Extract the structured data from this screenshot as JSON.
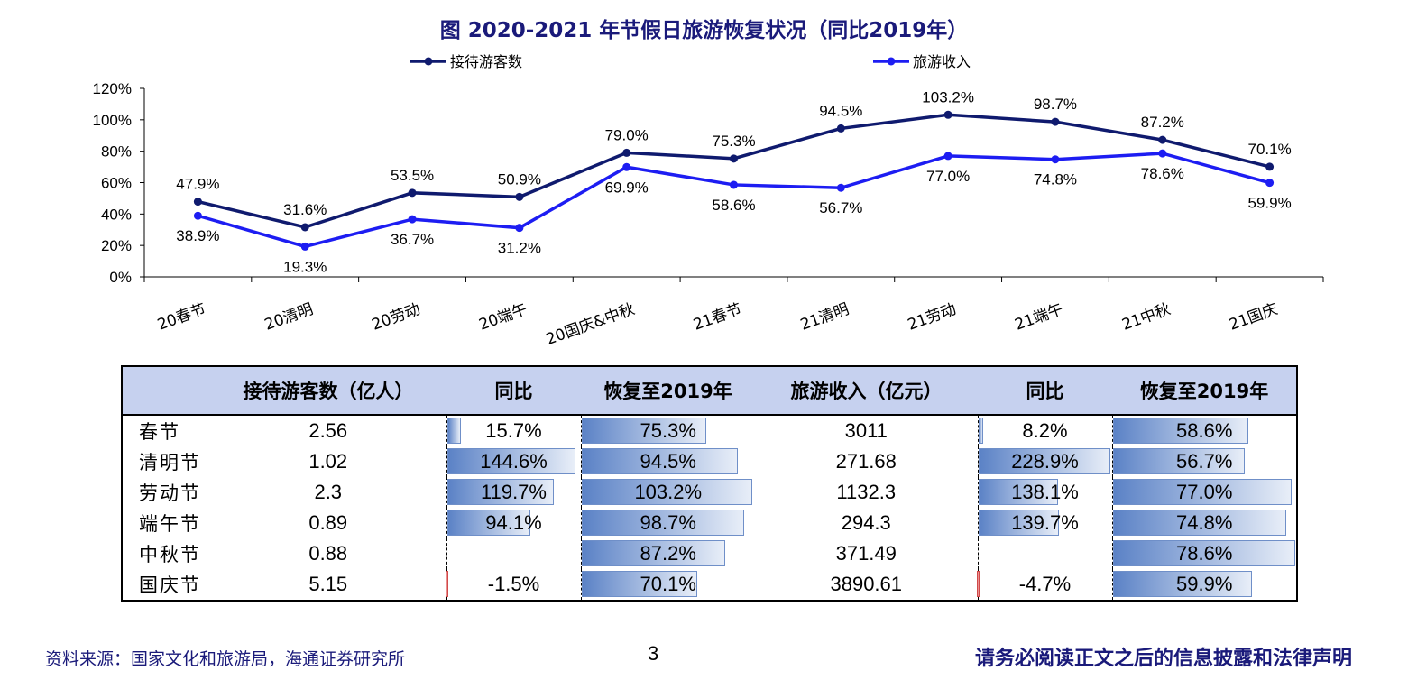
{
  "chart_data": {
    "type": "line",
    "title": "图 2020-2021 年节假日旅游恢复状况（同比2019年）",
    "categories": [
      "20春节",
      "20清明",
      "20劳动",
      "20端午",
      "20国庆&中秋",
      "21春节",
      "21清明",
      "21劳动",
      "21端午",
      "21中秋",
      "21国庆"
    ],
    "series": [
      {
        "name": "接待游客数",
        "values": [
          47.9,
          31.6,
          53.5,
          50.9,
          79.0,
          75.3,
          94.5,
          103.2,
          98.7,
          87.2,
          70.1
        ],
        "labels": [
          "47.9%",
          "31.6%",
          "53.5%",
          "50.9%",
          "79.0%",
          "75.3%",
          "94.5%",
          "103.2%",
          "98.7%",
          "87.2%",
          "70.1%"
        ],
        "color": "#0f1a6e"
      },
      {
        "name": "旅游收入",
        "values": [
          38.9,
          19.3,
          36.7,
          31.2,
          69.9,
          58.6,
          56.7,
          77.0,
          74.8,
          78.6,
          59.9
        ],
        "labels": [
          "38.9%",
          "19.3%",
          "36.7%",
          "31.2%",
          "69.9%",
          "58.6%",
          "56.7%",
          "77.0%",
          "74.8%",
          "78.6%",
          "59.9%"
        ],
        "color": "#1d1df2"
      }
    ],
    "ylim": [
      0,
      120
    ],
    "yticks": [
      "0%",
      "20%",
      "40%",
      "60%",
      "80%",
      "100%",
      "120%"
    ],
    "legend": "top"
  },
  "table": {
    "headers": [
      "",
      "接待游客数（亿人）",
      "同比",
      "恢复至2019年",
      "旅游收入（亿元）",
      "同比",
      "恢复至2019年"
    ],
    "rows": [
      {
        "name": "春节",
        "visitors": "2.56",
        "v_yoy": "15.7%",
        "v_yoy_num": 15.7,
        "v_rec": "75.3%",
        "v_rec_num": 75.3,
        "revenue": "3011",
        "r_yoy": "8.2%",
        "r_yoy_num": 8.2,
        "r_rec": "58.6%",
        "r_rec_num": 58.6
      },
      {
        "name": "清明节",
        "visitors": "1.02",
        "v_yoy": "144.6%",
        "v_yoy_num": 144.6,
        "v_rec": "94.5%",
        "v_rec_num": 94.5,
        "revenue": "271.68",
        "r_yoy": "228.9%",
        "r_yoy_num": 228.9,
        "r_rec": "56.7%",
        "r_rec_num": 56.7
      },
      {
        "name": "劳动节",
        "visitors": "2.3",
        "v_yoy": "119.7%",
        "v_yoy_num": 119.7,
        "v_rec": "103.2%",
        "v_rec_num": 103.2,
        "revenue": "1132.3",
        "r_yoy": "138.1%",
        "r_yoy_num": 138.1,
        "r_rec": "77.0%",
        "r_rec_num": 77.0
      },
      {
        "name": "端午节",
        "visitors": "0.89",
        "v_yoy": "94.1%",
        "v_yoy_num": 94.1,
        "v_rec": "98.7%",
        "v_rec_num": 98.7,
        "revenue": "294.3",
        "r_yoy": "139.7%",
        "r_yoy_num": 139.7,
        "r_rec": "74.8%",
        "r_rec_num": 74.8
      },
      {
        "name": "中秋节",
        "visitors": "0.88",
        "v_yoy": "",
        "v_yoy_num": null,
        "v_rec": "87.2%",
        "v_rec_num": 87.2,
        "revenue": "371.49",
        "r_yoy": "",
        "r_yoy_num": null,
        "r_rec": "78.6%",
        "r_rec_num": 78.6
      },
      {
        "name": "国庆节",
        "visitors": "5.15",
        "v_yoy": "-1.5%",
        "v_yoy_num": -1.5,
        "v_rec": "70.1%",
        "v_rec_num": 70.1,
        "revenue": "3890.61",
        "r_yoy": "-4.7%",
        "r_yoy_num": -4.7,
        "r_rec": "59.9%",
        "r_rec_num": 59.9
      }
    ]
  },
  "footer": {
    "source": "资料来源：国家文化和旅游局，海通证券研究所",
    "page": "3",
    "disclaimer": "请务必阅读正文之后的信息披露和法律声明"
  }
}
